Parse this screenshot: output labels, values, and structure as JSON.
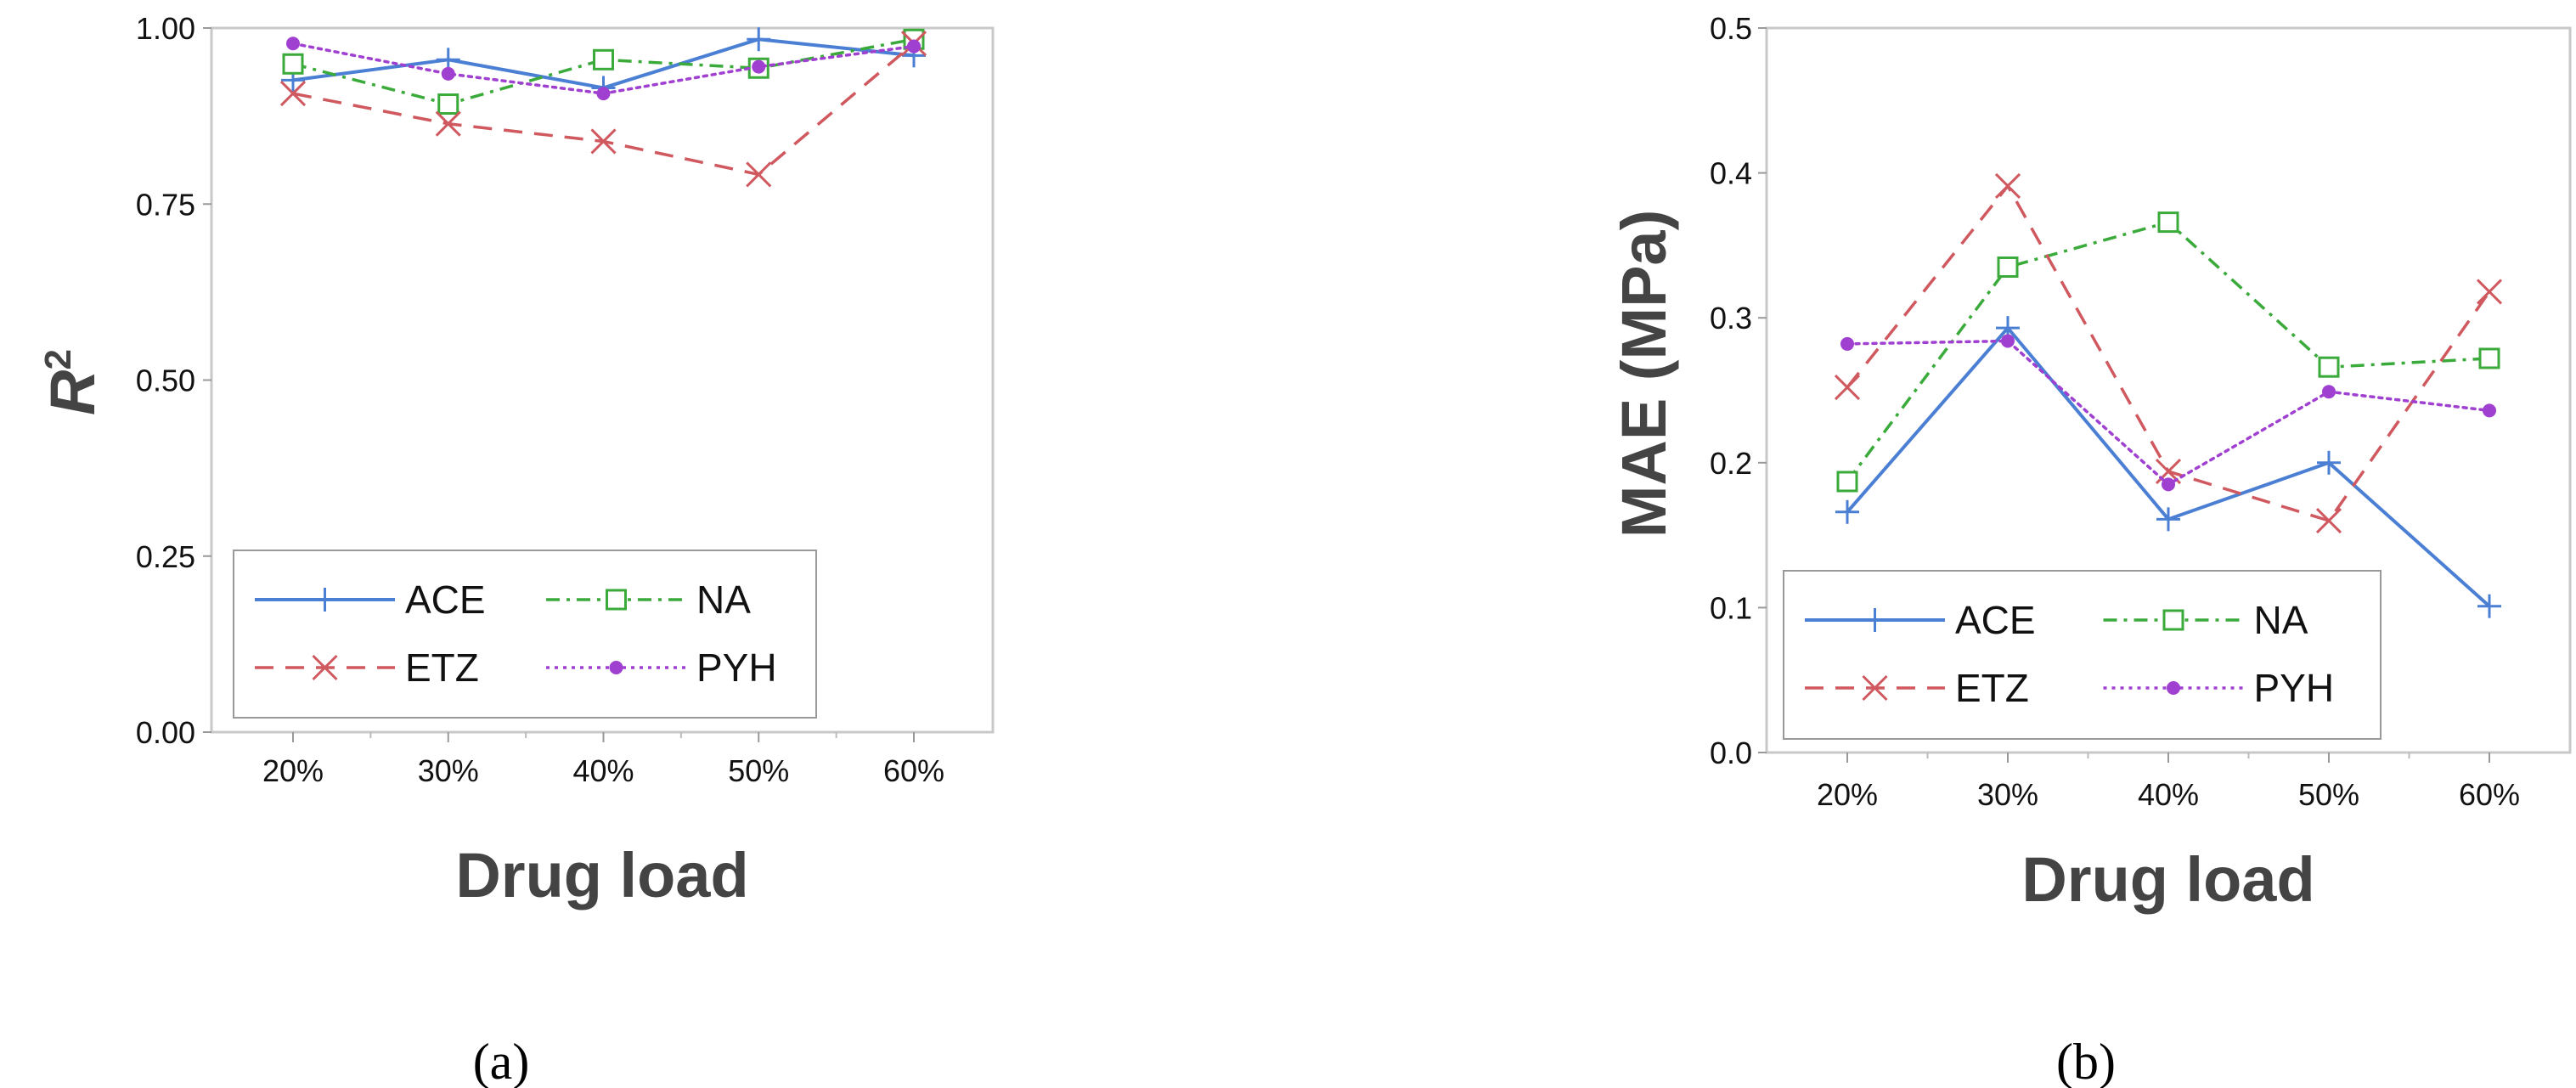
{
  "colors": {
    "ACE": "#4a7fd4",
    "ETZ": "#d0585f",
    "NA": "#3aaa3a",
    "PYH": "#a040d0",
    "frame": "#c8c8c8",
    "axis_title": "#444444"
  },
  "chart_data": [
    {
      "type": "line",
      "caption": "(a)",
      "xlabel": "Drug load",
      "ylabel": "R",
      "ylabel_superscript": "2",
      "categories": [
        "20%",
        "30%",
        "40%",
        "50%",
        "60%"
      ],
      "ylim": [
        0,
        1
      ],
      "yticks": [
        "0.00",
        "0.25",
        "0.50",
        "0.75",
        "1.00"
      ],
      "ytick_values": [
        0,
        0.25,
        0.5,
        0.75,
        1.0
      ],
      "grid": false,
      "legend_position": "bottom-left",
      "series": [
        {
          "name": "ACE",
          "marker": "plus",
          "dash": "solid",
          "values": [
            0.926,
            0.955,
            0.915,
            0.984,
            0.961
          ]
        },
        {
          "name": "NA",
          "marker": "square",
          "dash": "dashdot",
          "values": [
            0.949,
            0.892,
            0.955,
            0.943,
            0.984
          ]
        },
        {
          "name": "ETZ",
          "marker": "x",
          "dash": "dashed",
          "values": [
            0.907,
            0.864,
            0.839,
            0.792,
            0.978
          ]
        },
        {
          "name": "PYH",
          "marker": "dot",
          "dash": "dotted",
          "values": [
            0.978,
            0.935,
            0.907,
            0.945,
            0.974
          ]
        }
      ]
    },
    {
      "type": "line",
      "caption": "(b)",
      "xlabel": "Drug load",
      "ylabel": "MAE (MPa)",
      "ylabel_superscript": "",
      "categories": [
        "20%",
        "30%",
        "40%",
        "50%",
        "60%"
      ],
      "ylim": [
        0,
        0.5
      ],
      "yticks": [
        "0.0",
        "0.1",
        "0.2",
        "0.3",
        "0.4",
        "0.5"
      ],
      "ytick_values": [
        0,
        0.1,
        0.2,
        0.3,
        0.4,
        0.5
      ],
      "grid": false,
      "legend_position": "bottom-left",
      "series": [
        {
          "name": "ACE",
          "marker": "plus",
          "dash": "solid",
          "values": [
            0.166,
            0.293,
            0.161,
            0.2,
            0.101
          ]
        },
        {
          "name": "NA",
          "marker": "square",
          "dash": "dashdot",
          "values": [
            0.187,
            0.335,
            0.366,
            0.266,
            0.272
          ]
        },
        {
          "name": "ETZ",
          "marker": "x",
          "dash": "dashed",
          "values": [
            0.252,
            0.391,
            0.194,
            0.16,
            0.318
          ]
        },
        {
          "name": "PYH",
          "marker": "dot",
          "dash": "dotted",
          "values": [
            0.282,
            0.284,
            0.185,
            0.249,
            0.236
          ]
        }
      ]
    }
  ]
}
